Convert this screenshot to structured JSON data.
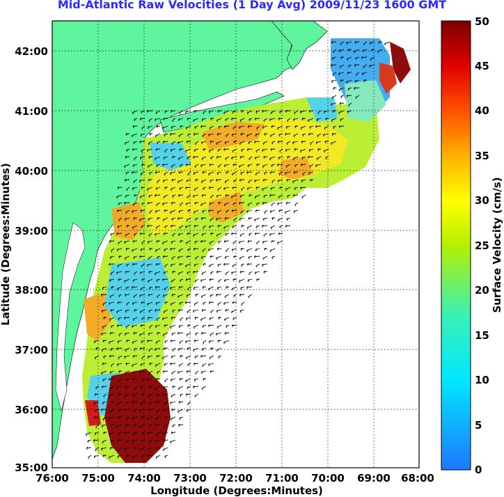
{
  "title": "Mid-Atlantic Raw Velocities (1 Day Avg) 2009/11/23 1600 GMT",
  "chart_data": {
    "type": "heatmap",
    "xlabel": "Longitude (Degrees:Minutes)",
    "ylabel": "Latitude (Degrees:Minutes)",
    "x_ticks": [
      "76:00",
      "75:00",
      "74:00",
      "73:00",
      "72:00",
      "71:00",
      "70:00",
      "69:00",
      "68:00"
    ],
    "y_ticks": [
      "42:00",
      "41:00",
      "40:00",
      "39:00",
      "38:00",
      "37:00",
      "36:00",
      "35:00"
    ],
    "xlim": [
      -76,
      -68
    ],
    "ylim": [
      35,
      42.5
    ],
    "grid": "dotted",
    "colorbar": {
      "label": "Surface Velocity (cm/s)",
      "range": [
        0,
        50
      ],
      "ticks": [
        "0",
        "5",
        "10",
        "15",
        "20",
        "25",
        "30",
        "35",
        "40",
        "45",
        "50"
      ]
    },
    "colors": {
      "land": "#5ff59e",
      "title": "#2a2aff"
    }
  }
}
